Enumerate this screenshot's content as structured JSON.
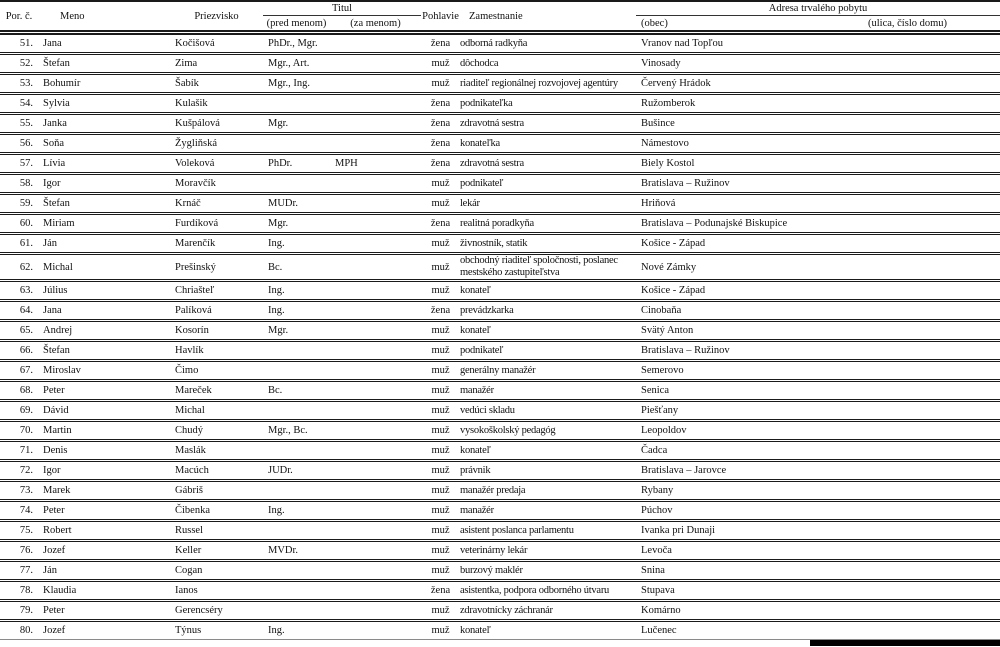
{
  "colors": {
    "text": "#111111",
    "rule": "#1a1a1a",
    "bottom_bar": "#000000"
  },
  "table": {
    "headers": {
      "num": "Por. č.",
      "meno": "Meno",
      "priezvisko": "Priezvisko",
      "titul": "Titul",
      "titul_pred": "(pred menom)",
      "titul_za": "(za menom)",
      "pohlavie": "Pohlavie",
      "zamestnanie": "Zamestnanie",
      "adresa": "Adresa trvalého pobytu",
      "obec": "(obec)",
      "ulica": "(ulica, číslo domu)"
    },
    "rows": [
      {
        "num": "51.",
        "meno": "Jana",
        "priezvisko": "Kočišová",
        "titul_pred": "PhDr., Mgr.",
        "titul_za": "",
        "pohlavie": "žena",
        "zamestnanie": "odborná radkyňa",
        "obec": "Vranov nad Topľou",
        "ulica": ""
      },
      {
        "num": "52.",
        "meno": "Štefan",
        "priezvisko": "Zima",
        "titul_pred": "Mgr., Art.",
        "titul_za": "",
        "pohlavie": "muž",
        "zamestnanie": "dôchodca",
        "obec": "Vinosady",
        "ulica": ""
      },
      {
        "num": "53.",
        "meno": "Bohumír",
        "priezvisko": "Šabík",
        "titul_pred": "Mgr., Ing.",
        "titul_za": "",
        "pohlavie": "muž",
        "zamestnanie": "riaditeľ regionálnej rozvojovej agentúry",
        "obec": "Červený Hrádok",
        "ulica": ""
      },
      {
        "num": "54.",
        "meno": "Sylvia",
        "priezvisko": "Kulašik",
        "titul_pred": "",
        "titul_za": "",
        "pohlavie": "žena",
        "zamestnanie": "podnikateľka",
        "obec": "Ružomberok",
        "ulica": ""
      },
      {
        "num": "55.",
        "meno": "Janka",
        "priezvisko": "Kušpálová",
        "titul_pred": "Mgr.",
        "titul_za": "",
        "pohlavie": "žena",
        "zamestnanie": "zdravotná sestra",
        "obec": "Bušince",
        "ulica": ""
      },
      {
        "num": "56.",
        "meno": "Soňa",
        "priezvisko": "Žygliňská",
        "titul_pred": "",
        "titul_za": "",
        "pohlavie": "žena",
        "zamestnanie": "konateľka",
        "obec": "Námestovo",
        "ulica": ""
      },
      {
        "num": "57.",
        "meno": "Lívia",
        "priezvisko": "Voleková",
        "titul_pred": "PhDr.",
        "titul_za": "MPH",
        "pohlavie": "žena",
        "zamestnanie": "zdravotná sestra",
        "obec": "Biely Kostol",
        "ulica": ""
      },
      {
        "num": "58.",
        "meno": "Igor",
        "priezvisko": "Moravčík",
        "titul_pred": "",
        "titul_za": "",
        "pohlavie": "muž",
        "zamestnanie": "podnikateľ",
        "obec": "Bratislava – Ružinov",
        "ulica": ""
      },
      {
        "num": "59.",
        "meno": "Štefan",
        "priezvisko": "Krnáč",
        "titul_pred": "MUDr.",
        "titul_za": "",
        "pohlavie": "muž",
        "zamestnanie": "lekár",
        "obec": "Hriňová",
        "ulica": ""
      },
      {
        "num": "60.",
        "meno": "Miriam",
        "priezvisko": "Furdíková",
        "titul_pred": "Mgr.",
        "titul_za": "",
        "pohlavie": "žena",
        "zamestnanie": "realitná poradkyňa",
        "obec": "Bratislava – Podunajské Biskupice",
        "ulica": ""
      },
      {
        "num": "61.",
        "meno": "Ján",
        "priezvisko": "Marenčík",
        "titul_pred": "Ing.",
        "titul_za": "",
        "pohlavie": "muž",
        "zamestnanie": "živnostník, statik",
        "obec": "Košice - Západ",
        "ulica": ""
      },
      {
        "num": "62.",
        "meno": "Michal",
        "priezvisko": "Prešinský",
        "titul_pred": "Bc.",
        "titul_za": "",
        "pohlavie": "muž",
        "zamestnanie": "obchodný riaditeľ spoločnosti, poslanec mestského zastupiteľstva",
        "obec": "Nové Zámky",
        "ulica": ""
      },
      {
        "num": "63.",
        "meno": "Július",
        "priezvisko": "Chriašteľ",
        "titul_pred": "Ing.",
        "titul_za": "",
        "pohlavie": "muž",
        "zamestnanie": "konateľ",
        "obec": "Košice - Západ",
        "ulica": ""
      },
      {
        "num": "64.",
        "meno": "Jana",
        "priezvisko": "Palíková",
        "titul_pred": "Ing.",
        "titul_za": "",
        "pohlavie": "žena",
        "zamestnanie": "prevádzkarka",
        "obec": "Cinobaňa",
        "ulica": ""
      },
      {
        "num": "65.",
        "meno": "Andrej",
        "priezvisko": "Kosorín",
        "titul_pred": "Mgr.",
        "titul_za": "",
        "pohlavie": "muž",
        "zamestnanie": "konateľ",
        "obec": "Svätý Anton",
        "ulica": ""
      },
      {
        "num": "66.",
        "meno": "Štefan",
        "priezvisko": "Havlík",
        "titul_pred": "",
        "titul_za": "",
        "pohlavie": "muž",
        "zamestnanie": "podnikateľ",
        "obec": "Bratislava – Ružinov",
        "ulica": ""
      },
      {
        "num": "67.",
        "meno": "Miroslav",
        "priezvisko": "Čimo",
        "titul_pred": "",
        "titul_za": "",
        "pohlavie": "muž",
        "zamestnanie": "generálny manažér",
        "obec": "Semerovo",
        "ulica": ""
      },
      {
        "num": "68.",
        "meno": "Peter",
        "priezvisko": "Mareček",
        "titul_pred": "Bc.",
        "titul_za": "",
        "pohlavie": "muž",
        "zamestnanie": "manažér",
        "obec": "Senica",
        "ulica": ""
      },
      {
        "num": "69.",
        "meno": "Dávid",
        "priezvisko": "Michal",
        "titul_pred": "",
        "titul_za": "",
        "pohlavie": "muž",
        "zamestnanie": "vedúci skladu",
        "obec": "Piešťany",
        "ulica": ""
      },
      {
        "num": "70.",
        "meno": "Martin",
        "priezvisko": "Chudý",
        "titul_pred": "Mgr., Bc.",
        "titul_za": "",
        "pohlavie": "muž",
        "zamestnanie": "vysokoškolský pedagóg",
        "obec": "Leopoldov",
        "ulica": ""
      },
      {
        "num": "71.",
        "meno": "Denis",
        "priezvisko": "Maslák",
        "titul_pred": "",
        "titul_za": "",
        "pohlavie": "muž",
        "zamestnanie": "konateľ",
        "obec": "Čadca",
        "ulica": ""
      },
      {
        "num": "72.",
        "meno": "Igor",
        "priezvisko": "Macúch",
        "titul_pred": "JUDr.",
        "titul_za": "",
        "pohlavie": "muž",
        "zamestnanie": "právnik",
        "obec": "Bratislava – Jarovce",
        "ulica": ""
      },
      {
        "num": "73.",
        "meno": "Marek",
        "priezvisko": "Gábriš",
        "titul_pred": "",
        "titul_za": "",
        "pohlavie": "muž",
        "zamestnanie": "manažér predaja",
        "obec": "Rybany",
        "ulica": ""
      },
      {
        "num": "74.",
        "meno": "Peter",
        "priezvisko": "Čibenka",
        "titul_pred": "Ing.",
        "titul_za": "",
        "pohlavie": "muž",
        "zamestnanie": "manažér",
        "obec": "Púchov",
        "ulica": ""
      },
      {
        "num": "75.",
        "meno": "Robert",
        "priezvisko": "Russel",
        "titul_pred": "",
        "titul_za": "",
        "pohlavie": "muž",
        "zamestnanie": "asistent poslanca parlamentu",
        "obec": "Ivanka pri Dunaji",
        "ulica": ""
      },
      {
        "num": "76.",
        "meno": "Jozef",
        "priezvisko": "Keller",
        "titul_pred": "MVDr.",
        "titul_za": "",
        "pohlavie": "muž",
        "zamestnanie": "veterinárny lekár",
        "obec": "Levoča",
        "ulica": ""
      },
      {
        "num": "77.",
        "meno": "Ján",
        "priezvisko": "Cogan",
        "titul_pred": "",
        "titul_za": "",
        "pohlavie": "muž",
        "zamestnanie": "burzový maklér",
        "obec": "Snina",
        "ulica": ""
      },
      {
        "num": "78.",
        "meno": "Klaudia",
        "priezvisko": "Ianos",
        "titul_pred": "",
        "titul_za": "",
        "pohlavie": "žena",
        "zamestnanie": "asistentka, podpora odborného útvaru",
        "obec": "Stupava",
        "ulica": ""
      },
      {
        "num": "79.",
        "meno": "Peter",
        "priezvisko": "Gerencséry",
        "titul_pred": "",
        "titul_za": "",
        "pohlavie": "muž",
        "zamestnanie": "zdravotnícky záchranár",
        "obec": "Komárno",
        "ulica": ""
      },
      {
        "num": "80.",
        "meno": "Jozef",
        "priezvisko": "Týnus",
        "titul_pred": "Ing.",
        "titul_za": "",
        "pohlavie": "muž",
        "zamestnanie": "konateľ",
        "obec": "Lučenec",
        "ulica": ""
      }
    ]
  }
}
